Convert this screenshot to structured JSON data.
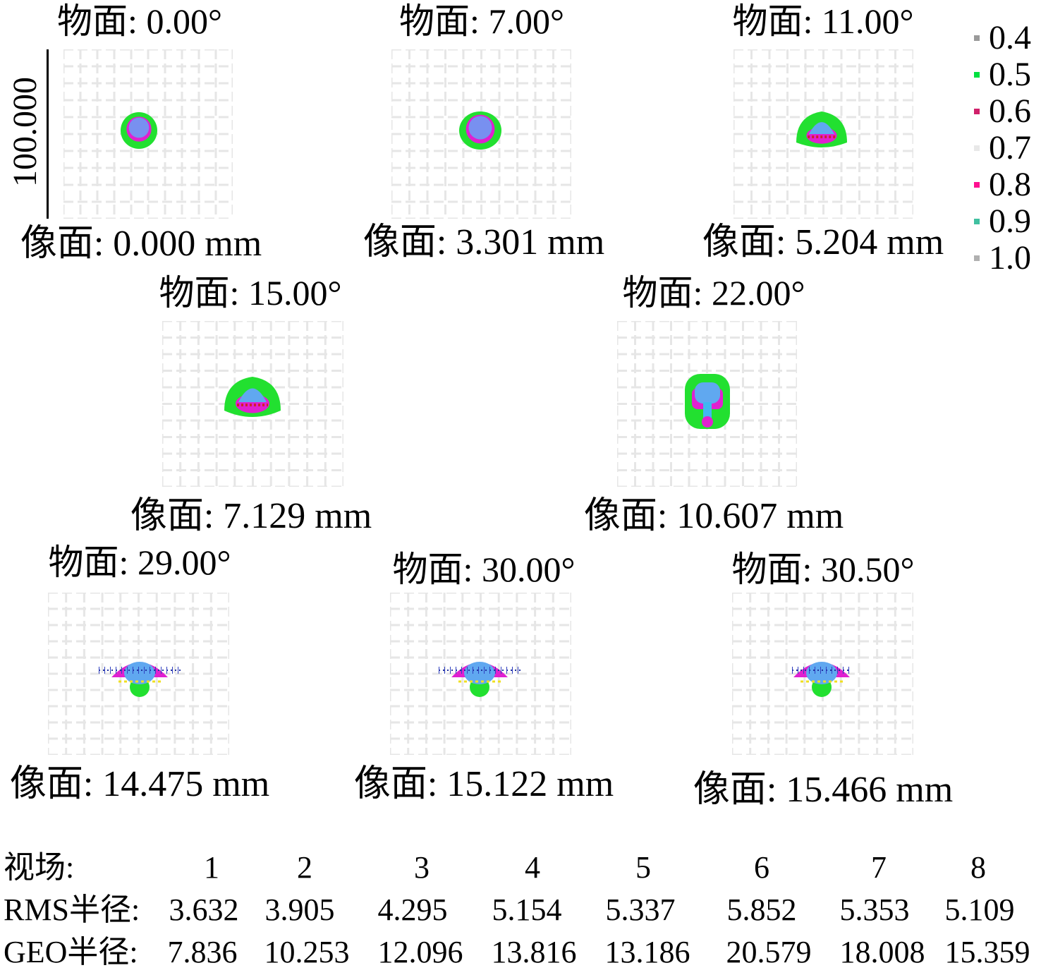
{
  "scale": {
    "label": "100.000"
  },
  "panels": [
    {
      "object": "物面: 0.00°",
      "image": "像面: 0.000 mm"
    },
    {
      "object": "物面: 7.00°",
      "image": "像面: 3.301 mm"
    },
    {
      "object": "物面: 11.00°",
      "image": "像面: 5.204 mm"
    },
    {
      "object": "物面: 15.00°",
      "image": "像面: 7.129 mm"
    },
    {
      "object": "物面: 22.00°",
      "image": "像面: 10.607 mm"
    },
    {
      "object": "物面: 29.00°",
      "image": "像面: 14.475 mm"
    },
    {
      "object": "物面: 30.00°",
      "image": "像面: 15.122 mm"
    },
    {
      "object": "物面: 30.50°",
      "image": "像面: 15.466 mm"
    }
  ],
  "legend": [
    {
      "label": "0.4",
      "color": "#9a9a9a"
    },
    {
      "label": "0.5",
      "color": "#00e040"
    },
    {
      "label": "0.6",
      "color": "#d0206a"
    },
    {
      "label": "0.7",
      "color": "#e8e8e8"
    },
    {
      "label": "0.8",
      "color": "#ff1090"
    },
    {
      "label": "0.9",
      "color": "#40c0a0"
    },
    {
      "label": "1.0",
      "color": "#b0b0b0"
    }
  ],
  "table": {
    "field_label": "视场:",
    "rms_label": "RMS半径:",
    "geo_label": "GEO半径:",
    "fields": [
      "1",
      "2",
      "3",
      "4",
      "5",
      "6",
      "7",
      "8"
    ],
    "rms": [
      "3.632",
      "3.905",
      "4.295",
      "5.154",
      "5.337",
      "5.852",
      "5.353",
      "5.109"
    ],
    "geo": [
      "7.836",
      "10.253",
      "12.096",
      "13.816",
      "13.186",
      "20.579",
      "18.008",
      "15.359"
    ]
  }
}
